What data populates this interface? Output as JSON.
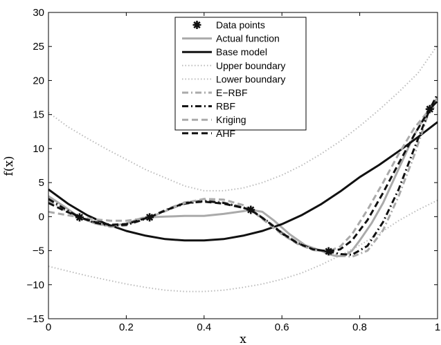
{
  "chart_data": {
    "type": "line",
    "xlabel": "x",
    "ylabel": "f(x)",
    "xlim": [
      0,
      1
    ],
    "ylim": [
      -15,
      30
    ],
    "xticks": [
      0,
      0.2,
      0.4,
      0.6,
      0.8,
      1
    ],
    "xtick_labels": [
      "0",
      "0.2",
      "0.4",
      "0.6",
      "0.8",
      "1"
    ],
    "yticks": [
      -15,
      -10,
      -5,
      0,
      5,
      10,
      15,
      20,
      25,
      30
    ],
    "ytick_labels": [
      "−15",
      "−10",
      "−5",
      "0",
      "5",
      "10",
      "15",
      "20",
      "25",
      "30"
    ],
    "grid": false,
    "legend_position": "top-center",
    "legend": [
      "Data points",
      "Actual function",
      "Base model",
      "Upper boundary",
      "Lower boundary",
      "E−RBF",
      "RBF",
      "Kriging",
      "AHF"
    ],
    "series": [
      {
        "name": "Data points",
        "style": "marker-star",
        "color": "#111111",
        "x": [
          0.08,
          0.26,
          0.52,
          0.72,
          0.98
        ],
        "y": [
          -0.1,
          -0.1,
          1.0,
          -5.1,
          15.8
        ]
      },
      {
        "name": "Actual function",
        "style": "solid",
        "color": "#aaaaaa",
        "width": 3,
        "x": [
          0,
          0.04,
          0.08,
          0.12,
          0.16,
          0.2,
          0.24,
          0.26,
          0.3,
          0.35,
          0.4,
          0.45,
          0.5,
          0.52,
          0.55,
          0.58,
          0.62,
          0.66,
          0.7,
          0.72,
          0.74,
          0.76,
          0.78,
          0.8,
          0.83,
          0.86,
          0.9,
          0.94,
          0.98,
          1.0
        ],
        "y": [
          3.0,
          1.5,
          -0.1,
          -1.0,
          -1.4,
          -1.0,
          -0.2,
          -0.1,
          0.0,
          0.1,
          0.1,
          0.4,
          0.8,
          1.0,
          0.7,
          -0.6,
          -2.6,
          -4.2,
          -5.0,
          -5.5,
          -5.8,
          -5.8,
          -5.0,
          -3.5,
          -1.0,
          2.0,
          7.0,
          12.0,
          16.0,
          17.5
        ]
      },
      {
        "name": "Base model",
        "style": "solid",
        "color": "#111111",
        "width": 3,
        "x": [
          0,
          0.05,
          0.1,
          0.15,
          0.2,
          0.25,
          0.3,
          0.35,
          0.4,
          0.45,
          0.5,
          0.55,
          0.6,
          0.65,
          0.7,
          0.75,
          0.8,
          0.85,
          0.9,
          0.95,
          1.0
        ],
        "y": [
          4.0,
          1.9,
          0.2,
          -1.1,
          -2.1,
          -2.8,
          -3.3,
          -3.5,
          -3.5,
          -3.3,
          -2.8,
          -2.1,
          -1.1,
          0.2,
          1.8,
          3.7,
          5.8,
          7.6,
          9.6,
          11.7,
          13.9
        ]
      },
      {
        "name": "Upper boundary",
        "style": "dotted",
        "color": "#bbbbbb",
        "width": 2,
        "x": [
          0,
          0.05,
          0.1,
          0.15,
          0.2,
          0.25,
          0.3,
          0.35,
          0.4,
          0.45,
          0.5,
          0.55,
          0.6,
          0.65,
          0.7,
          0.75,
          0.8,
          0.85,
          0.9,
          0.95,
          1.0
        ],
        "y": [
          15.3,
          13.2,
          11.5,
          9.9,
          8.4,
          6.9,
          5.7,
          4.5,
          3.8,
          3.8,
          4.2,
          5.0,
          6.1,
          7.5,
          9.2,
          11.1,
          13.3,
          15.7,
          18.3,
          21.1,
          25.2
        ]
      },
      {
        "name": "Lower boundary",
        "style": "dotted",
        "color": "#bbbbbb",
        "width": 2,
        "x": [
          0,
          0.05,
          0.1,
          0.15,
          0.2,
          0.25,
          0.3,
          0.35,
          0.4,
          0.45,
          0.5,
          0.55,
          0.6,
          0.65,
          0.7,
          0.75,
          0.8,
          0.85,
          0.9,
          0.95,
          1.0
        ],
        "y": [
          -7.3,
          -8.0,
          -8.7,
          -9.3,
          -9.9,
          -10.4,
          -10.8,
          -11.0,
          -11.0,
          -10.8,
          -10.4,
          -9.9,
          -9.2,
          -8.3,
          -7.1,
          -5.7,
          -4.2,
          -2.5,
          -0.6,
          1.0,
          2.4
        ]
      },
      {
        "name": "E−RBF",
        "style": "dashdot",
        "color": "#aaaaaa",
        "width": 3,
        "x": [
          0,
          0.04,
          0.08,
          0.12,
          0.16,
          0.2,
          0.24,
          0.26,
          0.3,
          0.35,
          0.4,
          0.45,
          0.5,
          0.52,
          0.56,
          0.6,
          0.64,
          0.68,
          0.72,
          0.75,
          0.78,
          0.82,
          0.86,
          0.9,
          0.94,
          0.98,
          1.0
        ],
        "y": [
          2.4,
          1.0,
          -0.1,
          -1.0,
          -1.5,
          -1.3,
          -0.5,
          -0.1,
          1.0,
          2.1,
          2.4,
          2.1,
          1.4,
          1.0,
          -0.5,
          -2.3,
          -3.8,
          -4.9,
          -5.1,
          -5.7,
          -5.9,
          -5.0,
          -2.0,
          3.0,
          9.0,
          15.8,
          17.0
        ]
      },
      {
        "name": "RBF",
        "style": "dashdot",
        "color": "#111111",
        "width": 3,
        "x": [
          0,
          0.04,
          0.08,
          0.12,
          0.16,
          0.2,
          0.24,
          0.26,
          0.3,
          0.35,
          0.4,
          0.45,
          0.5,
          0.52,
          0.56,
          0.6,
          0.64,
          0.68,
          0.72,
          0.75,
          0.78,
          0.82,
          0.86,
          0.9,
          0.94,
          0.98,
          1.0
        ],
        "y": [
          2.6,
          1.2,
          -0.1,
          -0.9,
          -1.3,
          -1.2,
          -0.5,
          -0.1,
          0.9,
          1.9,
          2.3,
          2.0,
          1.3,
          1.0,
          -0.6,
          -2.5,
          -3.9,
          -4.8,
          -5.1,
          -5.5,
          -5.6,
          -4.3,
          -0.8,
          4.0,
          10.0,
          15.8,
          18.0
        ]
      },
      {
        "name": "Kriging",
        "style": "dashed",
        "color": "#aaaaaa",
        "width": 3,
        "x": [
          0,
          0.04,
          0.08,
          0.12,
          0.16,
          0.2,
          0.24,
          0.26,
          0.3,
          0.35,
          0.4,
          0.45,
          0.5,
          0.52,
          0.56,
          0.6,
          0.64,
          0.68,
          0.72,
          0.75,
          0.78,
          0.82,
          0.86,
          0.9,
          0.94,
          0.98,
          1.0
        ],
        "y": [
          0.7,
          0.3,
          -0.1,
          -0.4,
          -0.6,
          -0.6,
          -0.3,
          -0.1,
          0.8,
          2.0,
          2.6,
          2.5,
          1.7,
          1.0,
          -0.8,
          -2.6,
          -4.0,
          -4.9,
          -5.1,
          -4.4,
          -2.6,
          1.0,
          5.0,
          9.2,
          13.0,
          15.8,
          16.2
        ]
      },
      {
        "name": "AHF",
        "style": "dashed",
        "color": "#111111",
        "width": 3,
        "x": [
          0,
          0.04,
          0.08,
          0.12,
          0.16,
          0.2,
          0.24,
          0.26,
          0.3,
          0.35,
          0.4,
          0.45,
          0.5,
          0.52,
          0.56,
          0.6,
          0.64,
          0.68,
          0.72,
          0.75,
          0.78,
          0.82,
          0.86,
          0.9,
          0.94,
          0.98,
          1.0
        ],
        "y": [
          2.0,
          0.9,
          -0.1,
          -0.8,
          -1.2,
          -1.1,
          -0.4,
          -0.1,
          0.9,
          2.0,
          2.2,
          1.9,
          1.3,
          1.0,
          -0.6,
          -2.4,
          -3.9,
          -4.8,
          -5.1,
          -4.8,
          -3.5,
          -0.5,
          3.5,
          7.8,
          12.0,
          15.8,
          17.0
        ]
      }
    ]
  }
}
